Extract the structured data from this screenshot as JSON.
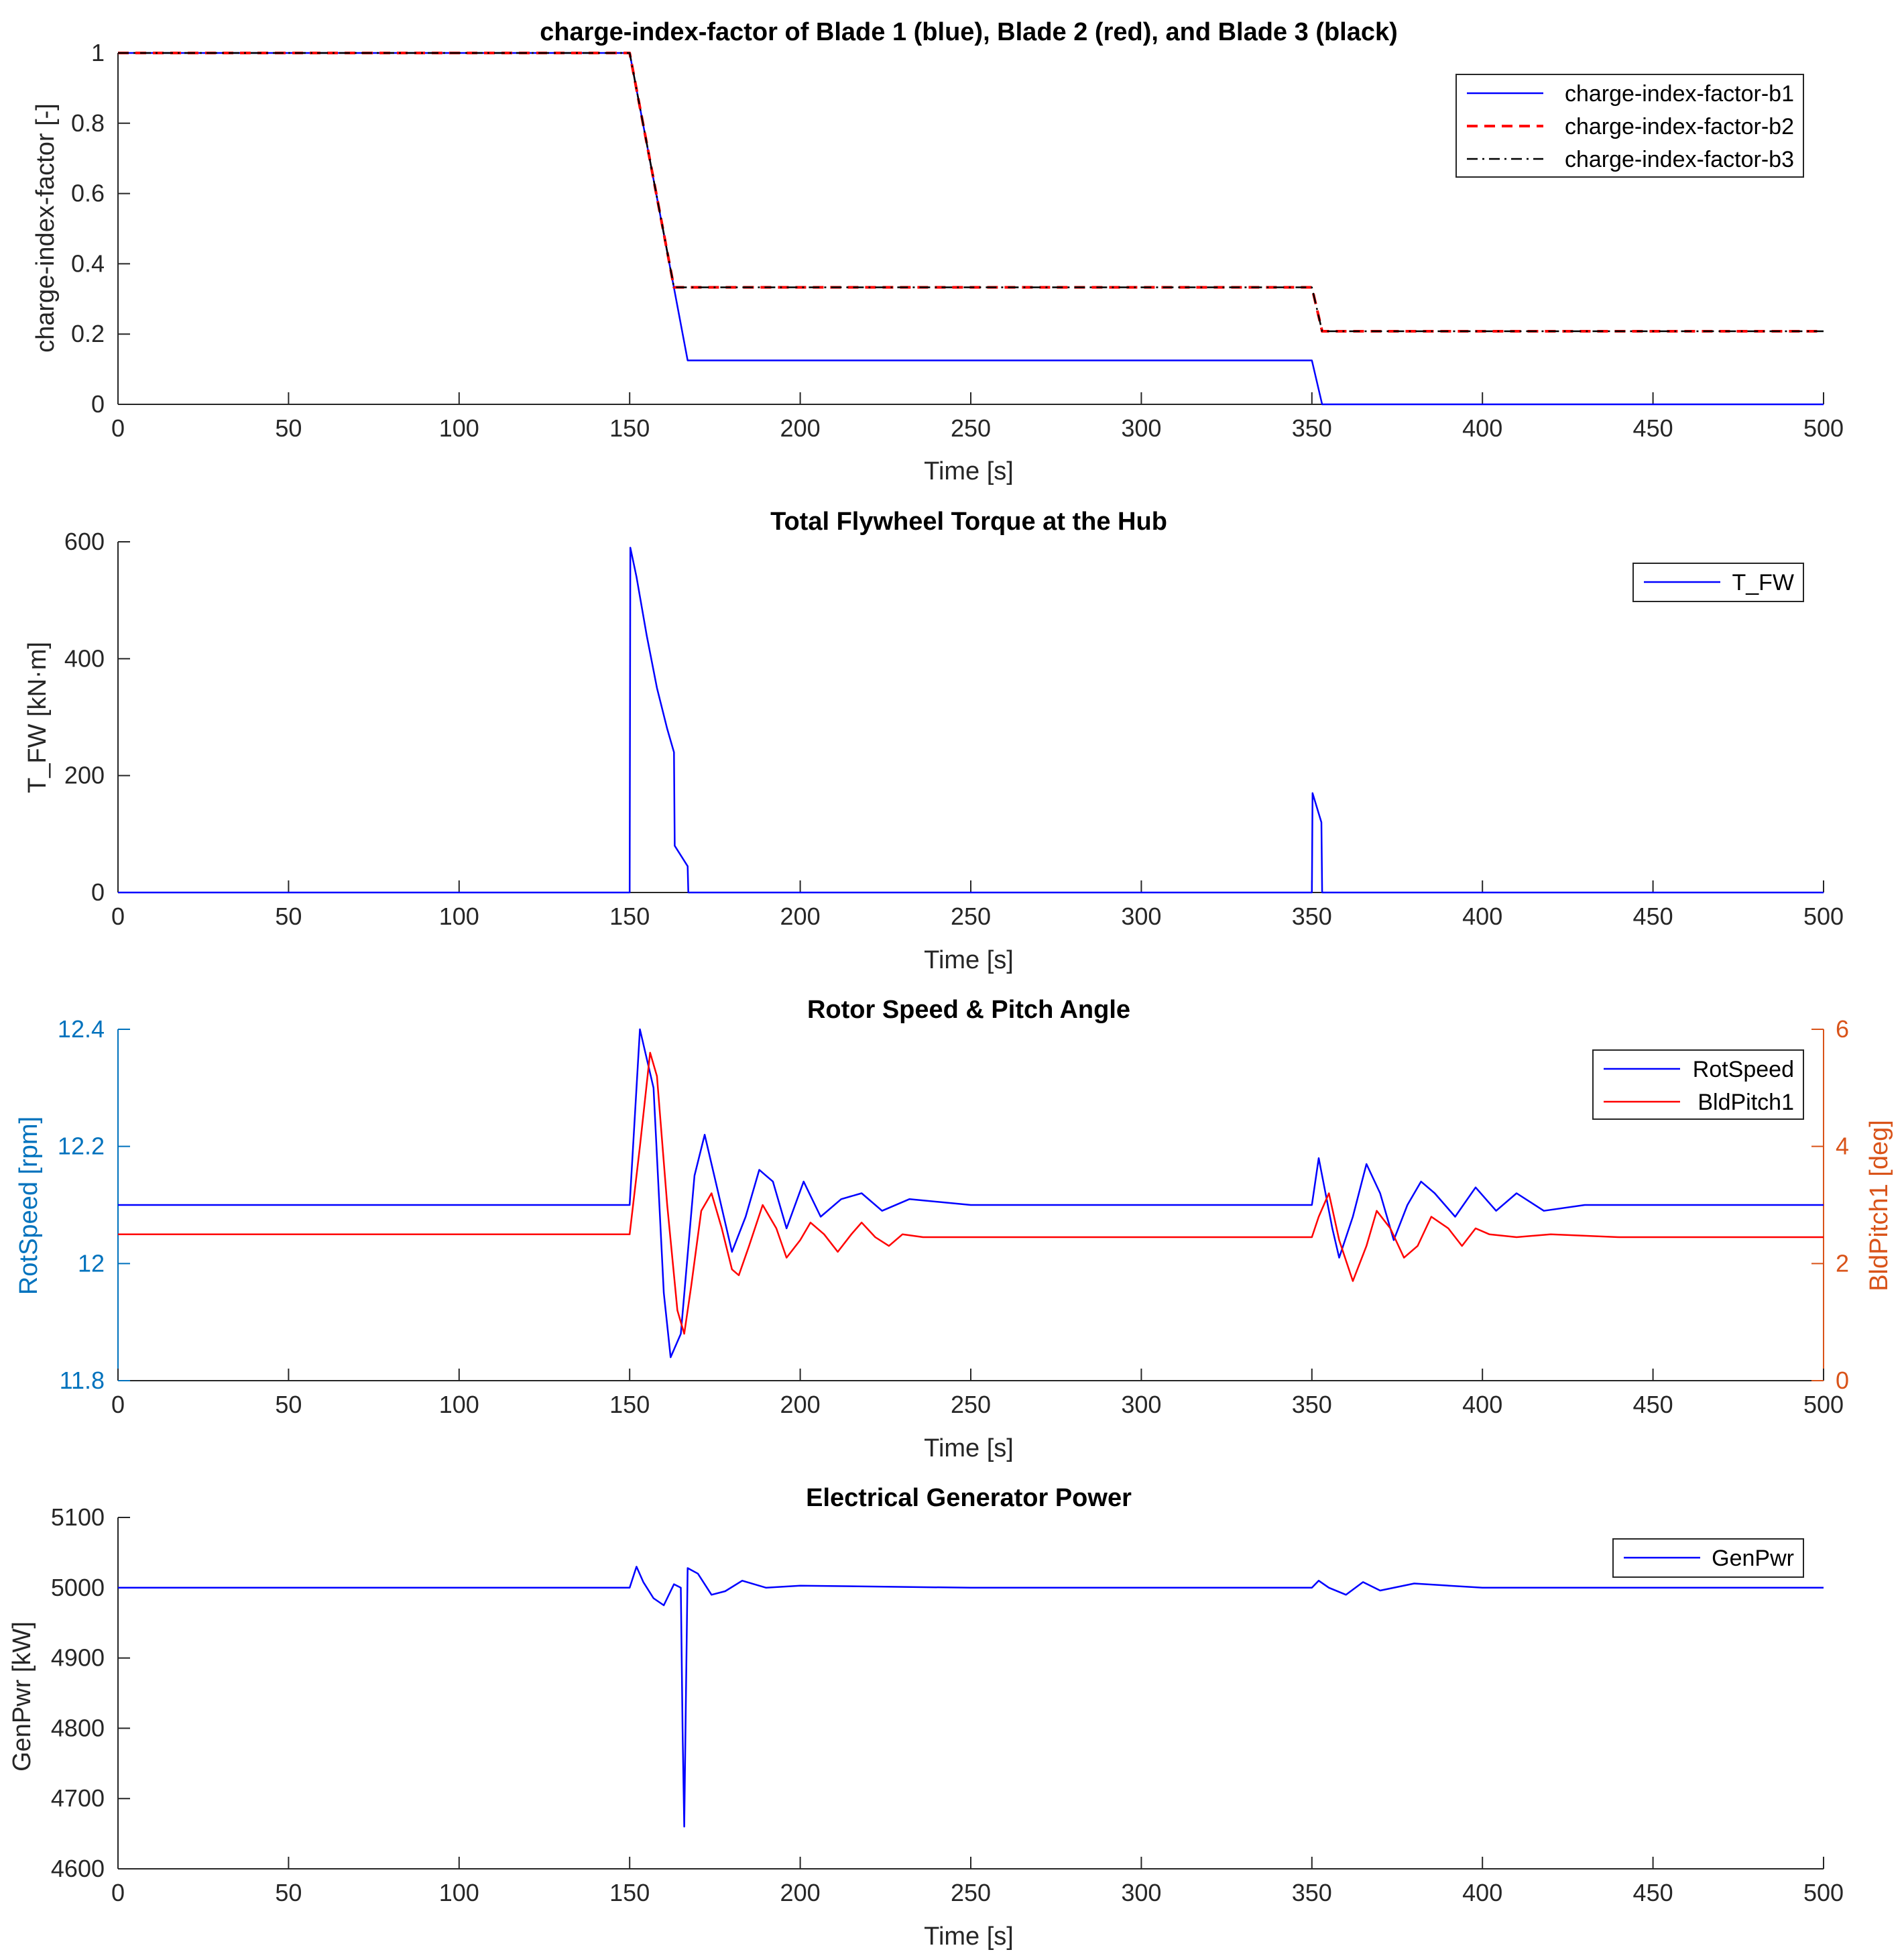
{
  "chart_data": [
    {
      "type": "line",
      "title": "charge-index-factor of Blade 1 (blue), Blade 2 (red), and Blade 3 (black)",
      "xlabel": "Time [s]",
      "ylabel": "charge-index-factor [-]",
      "xlim": [
        0,
        500
      ],
      "ylim": [
        0,
        1
      ],
      "xticks": [
        "0",
        "50",
        "100",
        "150",
        "200",
        "250",
        "300",
        "350",
        "400",
        "450",
        "500"
      ],
      "yticks": [
        "0",
        "0.2",
        "0.4",
        "0.6",
        "0.8",
        "1"
      ],
      "legend": "top-right",
      "series": [
        {
          "name": "charge-index-factor-b1",
          "color": "#0000ff",
          "style": "solid",
          "x": [
            0,
            150,
            167,
            350,
            353,
            500
          ],
          "y": [
            1,
            1,
            0.125,
            0.125,
            0,
            0
          ]
        },
        {
          "name": "charge-index-factor-b2",
          "color": "#ff0000",
          "style": "dashed",
          "x": [
            0,
            150,
            163,
            350,
            353,
            500
          ],
          "y": [
            1,
            1,
            0.333,
            0.333,
            0.208,
            0.208
          ]
        },
        {
          "name": "charge-index-factor-b3",
          "color": "#000000",
          "style": "dashdot",
          "x": [
            0,
            150,
            163,
            350,
            353,
            500
          ],
          "y": [
            1,
            1,
            0.333,
            0.333,
            0.208,
            0.208
          ]
        }
      ]
    },
    {
      "type": "line",
      "title": "Total Flywheel Torque at the Hub",
      "xlabel": "Time [s]",
      "ylabel": "T_FW [kN·m]",
      "xlim": [
        0,
        500
      ],
      "ylim": [
        0,
        600
      ],
      "xticks": [
        "0",
        "50",
        "100",
        "150",
        "200",
        "250",
        "300",
        "350",
        "400",
        "450",
        "500"
      ],
      "yticks": [
        "0",
        "200",
        "400",
        "600"
      ],
      "legend": "top-right",
      "series": [
        {
          "name": "T_FW",
          "color": "#0000ff",
          "style": "solid",
          "x": [
            0,
            150,
            150.2,
            152,
            155,
            158,
            161,
            163,
            163.2,
            167,
            167.2,
            350,
            350.2,
            352.8,
            353,
            500
          ],
          "y": [
            0,
            0,
            590,
            540,
            440,
            350,
            280,
            240,
            80,
            45,
            0,
            0,
            170,
            120,
            0,
            0
          ]
        }
      ]
    },
    {
      "type": "line",
      "title": "Rotor Speed & Pitch Angle",
      "xlabel": "Time [s]",
      "ylabel_left": "RotSpeed [rpm]",
      "ylabel_right": "BldPitch1 [deg]",
      "xlim": [
        0,
        500
      ],
      "ylim_left": [
        11.8,
        12.4
      ],
      "ylim_right": [
        0,
        6
      ],
      "xticks": [
        "0",
        "50",
        "100",
        "150",
        "200",
        "250",
        "300",
        "350",
        "400",
        "450",
        "500"
      ],
      "yticks_left": [
        "11.8",
        "12",
        "12.2",
        "12.4"
      ],
      "yticks_right": [
        "0",
        "2",
        "4",
        "6"
      ],
      "left_axis_color": "#0072bd",
      "right_axis_color": "#d95319",
      "legend": "top-right",
      "series": [
        {
          "name": "RotSpeed",
          "color": "#0000ff",
          "axis": "left",
          "x": [
            0,
            150,
            153,
            157,
            160,
            162,
            165,
            169,
            172,
            176,
            180,
            184,
            188,
            192,
            196,
            201,
            206,
            212,
            218,
            224,
            232,
            250,
            300,
            350,
            352,
            356,
            358,
            362,
            366,
            370,
            374,
            378,
            382,
            386,
            392,
            398,
            404,
            410,
            418,
            430,
            500
          ],
          "y": [
            12.1,
            12.1,
            12.4,
            12.3,
            11.95,
            11.84,
            11.88,
            12.15,
            12.22,
            12.12,
            12.02,
            12.08,
            12.16,
            12.14,
            12.06,
            12.14,
            12.08,
            12.11,
            12.12,
            12.09,
            12.11,
            12.1,
            12.1,
            12.1,
            12.18,
            12.06,
            12.01,
            12.08,
            12.17,
            12.12,
            12.04,
            12.1,
            12.14,
            12.12,
            12.08,
            12.13,
            12.09,
            12.12,
            12.09,
            12.1,
            12.1
          ]
        },
        {
          "name": "BldPitch1",
          "color": "#ff0000",
          "axis": "right",
          "x": [
            0,
            150,
            153,
            156,
            158,
            161,
            164,
            166,
            168,
            171,
            174,
            177,
            180,
            182,
            185,
            189,
            193,
            196,
            200,
            203,
            207,
            211,
            215,
            218,
            222,
            226,
            230,
            236,
            250,
            300,
            350,
            352,
            355,
            358,
            362,
            366,
            369,
            373,
            377,
            381,
            385,
            390,
            394,
            398,
            402,
            410,
            420,
            440,
            500
          ],
          "y": [
            2.5,
            2.5,
            4,
            5.6,
            5.2,
            3,
            1.2,
            0.8,
            1.6,
            2.9,
            3.2,
            2.6,
            1.9,
            1.8,
            2.3,
            3.0,
            2.6,
            2.1,
            2.4,
            2.7,
            2.5,
            2.2,
            2.5,
            2.7,
            2.45,
            2.3,
            2.5,
            2.45,
            2.45,
            2.45,
            2.45,
            2.8,
            3.2,
            2.4,
            1.7,
            2.3,
            2.9,
            2.6,
            2.1,
            2.3,
            2.8,
            2.6,
            2.3,
            2.6,
            2.5,
            2.45,
            2.5,
            2.45,
            2.45
          ]
        }
      ]
    },
    {
      "type": "line",
      "title": "Electrical Generator Power",
      "xlabel": "Time [s]",
      "ylabel": "GenPwr [kW]",
      "xlim": [
        0,
        500
      ],
      "ylim": [
        4600,
        5100
      ],
      "xticks": [
        "0",
        "50",
        "100",
        "150",
        "200",
        "250",
        "300",
        "350",
        "400",
        "450",
        "500"
      ],
      "yticks": [
        "4600",
        "4700",
        "4800",
        "4900",
        "5000",
        "5100"
      ],
      "legend": "top-right",
      "series": [
        {
          "name": "GenPwr",
          "color": "#0000ff",
          "style": "solid",
          "x": [
            0,
            150,
            152,
            154,
            157,
            160,
            163,
            165,
            165.5,
            166,
            166.5,
            167,
            170,
            174,
            178,
            183,
            190,
            200,
            250,
            300,
            350,
            352,
            355,
            360,
            365,
            370,
            380,
            400,
            500
          ],
          "y": [
            5000,
            5000,
            5030,
            5008,
            4985,
            4975,
            5005,
            5000,
            4800,
            4660,
            4850,
            5028,
            5020,
            4990,
            4995,
            5010,
            5000,
            5003,
            5000,
            5000,
            5000,
            5010,
            5000,
            4990,
            5008,
            4996,
            5006,
            5000,
            5000
          ]
        }
      ]
    }
  ]
}
